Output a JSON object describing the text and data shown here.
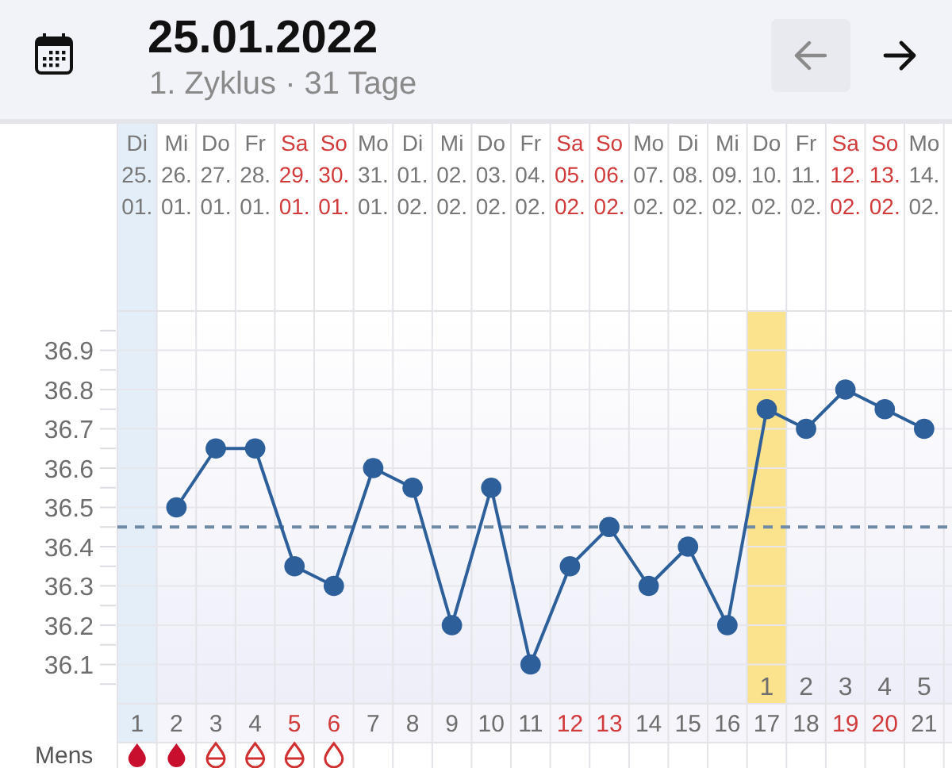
{
  "chart_data": {
    "type": "line",
    "title": "25.01.2022",
    "subtitle": "1. Zyklus · 31 Tage",
    "x": [
      "2022-01-26",
      "2022-01-27",
      "2022-01-28",
      "2022-01-29",
      "2022-01-30",
      "2022-01-31",
      "2022-02-01",
      "2022-02-02",
      "2022-02-03",
      "2022-02-04",
      "2022-02-05",
      "2022-02-06",
      "2022-02-07",
      "2022-02-08",
      "2022-02-09",
      "2022-02-10",
      "2022-02-11",
      "2022-02-12",
      "2022-02-13",
      "2022-02-14"
    ],
    "series": [
      {
        "color": "#2d5f9a",
        "values": [
          36.5,
          36.65,
          36.65,
          36.35,
          36.3,
          36.6,
          36.55,
          36.2,
          36.55,
          36.1,
          36.35,
          36.45,
          36.3,
          36.4,
          36.2,
          36.75,
          36.7,
          36.8,
          36.75,
          36.7
        ]
      }
    ],
    "xlim": [
      "2022-01-24T12:00",
      "2022-02-14T17:00"
    ],
    "xticks": [
      {
        "value": "2022-01-25",
        "label": "1"
      },
      {
        "value": "2022-01-26",
        "label": "2"
      },
      {
        "value": "2022-01-27",
        "label": "3"
      },
      {
        "value": "2022-01-28",
        "label": "4"
      },
      {
        "value": "2022-01-29",
        "label": "5"
      },
      {
        "value": "2022-01-30",
        "label": "6"
      },
      {
        "value": "2022-01-31",
        "label": "7"
      },
      {
        "value": "2022-02-01",
        "label": "8"
      },
      {
        "value": "2022-02-02",
        "label": "9"
      },
      {
        "value": "2022-02-03",
        "label": "10"
      },
      {
        "value": "2022-02-04",
        "label": "11"
      },
      {
        "value": "2022-02-05",
        "label": "12"
      },
      {
        "value": "2022-02-06",
        "label": "13"
      },
      {
        "value": "2022-02-07",
        "label": "14"
      },
      {
        "value": "2022-02-08",
        "label": "15"
      },
      {
        "value": "2022-02-09",
        "label": "16"
      },
      {
        "value": "2022-02-10",
        "label": "17"
      },
      {
        "value": "2022-02-11",
        "label": "18"
      },
      {
        "value": "2022-02-12",
        "label": "19"
      },
      {
        "value": "2022-02-13",
        "label": "20"
      },
      {
        "value": "2022-02-14",
        "label": "21"
      }
    ],
    "x2lim": [
      "2022-01-24T12:00",
      "2022-02-14T17:00"
    ],
    "x2ticks": [
      {
        "value": "2022-01-25",
        "label": "Di 25. 01."
      },
      {
        "value": "2022-01-26",
        "label": "Mi 26. 01."
      },
      {
        "value": "2022-01-27",
        "label": "Do 27. 01."
      },
      {
        "value": "2022-01-28",
        "label": "Fr 28. 01."
      },
      {
        "value": "2022-01-29",
        "label": "Sa 29. 01."
      },
      {
        "value": "2022-01-30",
        "label": "So 30. 01."
      },
      {
        "value": "2022-01-31",
        "label": "Mo 31. 01."
      },
      {
        "value": "2022-02-01",
        "label": "Di 01. 02."
      },
      {
        "value": "2022-02-02",
        "label": "Mi 02. 02."
      },
      {
        "value": "2022-02-03",
        "label": "Do 03. 02."
      },
      {
        "value": "2022-02-04",
        "label": "Fr 04. 02."
      },
      {
        "value": "2022-02-05",
        "label": "Sa 05. 02."
      },
      {
        "value": "2022-02-06",
        "label": "So 06. 02."
      },
      {
        "value": "2022-02-07",
        "label": "Mo 07. 02."
      },
      {
        "value": "2022-02-08",
        "label": "Di 08. 02."
      },
      {
        "value": "2022-02-09",
        "label": "Mi 09. 02."
      },
      {
        "value": "2022-02-10",
        "label": "Do 10. 02."
      },
      {
        "value": "2022-02-11",
        "label": "Fr 11. 02."
      },
      {
        "value": "2022-02-12",
        "label": "Sa 12. 02."
      },
      {
        "value": "2022-02-13",
        "label": "So 13. 02."
      },
      {
        "value": "2022-02-14",
        "label": "Mo 14. 02."
      }
    ],
    "ylim": [
      36.0,
      37.0
    ],
    "yticks": [
      {
        "value": 36.05,
        "label": null
      },
      36.1,
      {
        "value": 36.15,
        "label": null
      },
      36.2,
      {
        "value": 36.25,
        "label": null
      },
      36.3,
      {
        "value": 36.35,
        "label": null
      },
      36.4,
      {
        "value": 36.45,
        "label": null
      },
      36.5,
      {
        "value": 36.55,
        "label": null
      },
      36.6,
      {
        "value": 36.65,
        "label": null
      },
      36.7,
      {
        "value": 36.75,
        "label": null
      },
      36.8,
      {
        "value": 36.85,
        "label": null
      },
      36.9,
      {
        "value": 36.95,
        "label": null
      }
    ],
    "grid": true,
    "marker": "circle",
    "ref_lines": [
      {
        "axis": "y",
        "value": 36.45,
        "line_style": "dashed",
        "color": "#6f8aa5"
      }
    ],
    "bands": [
      {
        "axis": "x",
        "from": "2022-01-24T12:00",
        "to": "2022-01-25T12:00",
        "color": "#e3eef9"
      },
      {
        "axis": "x",
        "from": "2022-02-09T12:00",
        "to": "2022-02-10T12:00",
        "color": "#fbe28c"
      }
    ],
    "annotations": [
      "1",
      "2",
      "3",
      "4",
      "5",
      "Mens"
    ]
  }
}
